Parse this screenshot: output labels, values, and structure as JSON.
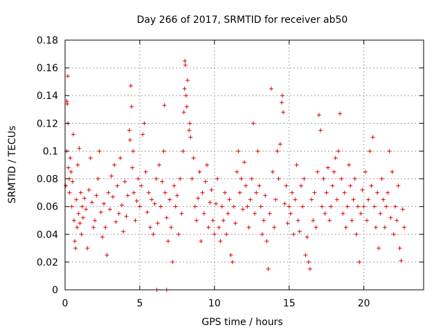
{
  "chart_data": {
    "type": "scatter",
    "title": "Day 266 of 2017, SRMTID for receiver ab50",
    "xlabel": "GPS time / hours",
    "ylabel": "SRMTID / TECUs",
    "xlim": [
      0,
      24
    ],
    "ylim": [
      0,
      0.18
    ],
    "x_ticks": [
      0,
      5,
      10,
      15,
      20
    ],
    "x_tick_labels": [
      "0",
      "5",
      "10",
      "15",
      "20"
    ],
    "y_ticks": [
      0,
      0.02,
      0.04,
      0.06,
      0.08,
      0.1,
      0.12,
      0.14,
      0.16,
      0.18
    ],
    "y_tick_labels": [
      "0",
      "0.02",
      "0.04",
      "0.06",
      "0.08",
      "0.1",
      "0.12",
      "0.14",
      "0.16",
      "0.18"
    ],
    "grid": true,
    "marker": "+",
    "color": "#dd0000",
    "series": [
      {
        "name": "SRMTID",
        "points": [
          [
            0.05,
            0.075
          ],
          [
            0.1,
            0.1
          ],
          [
            0.12,
            0.136
          ],
          [
            0.15,
            0.134
          ],
          [
            0.18,
            0.154
          ],
          [
            0.2,
            0.12
          ],
          [
            0.22,
            0.088
          ],
          [
            0.28,
            0.08
          ],
          [
            0.3,
            0.07
          ],
          [
            0.35,
            0.095
          ],
          [
            0.4,
            0.085
          ],
          [
            0.45,
            0.06
          ],
          [
            0.5,
            0.078
          ],
          [
            0.55,
            0.112
          ],
          [
            0.6,
            0.05
          ],
          [
            0.65,
            0.035
          ],
          [
            0.7,
            0.03
          ],
          [
            0.75,
            0.065
          ],
          [
            0.8,
            0.045
          ],
          [
            0.85,
            0.09
          ],
          [
            0.9,
            0.055
          ],
          [
            0.95,
            0.102
          ],
          [
            1.0,
            0.048
          ],
          [
            1.05,
            0.07
          ],
          [
            1.1,
            0.04
          ],
          [
            1.15,
            0.06
          ],
          [
            1.2,
            0.052
          ],
          [
            1.3,
            0.066
          ],
          [
            1.4,
            0.058
          ],
          [
            1.5,
            0.03
          ],
          [
            1.6,
            0.072
          ],
          [
            1.7,
            0.095
          ],
          [
            1.8,
            0.063
          ],
          [
            1.9,
            0.045
          ],
          [
            2.0,
            0.05
          ],
          [
            2.1,
            0.068
          ],
          [
            2.2,
            0.08
          ],
          [
            2.3,
            0.1
          ],
          [
            2.4,
            0.056
          ],
          [
            2.5,
            0.038
          ],
          [
            2.6,
            0.062
          ],
          [
            2.7,
            0.045
          ],
          [
            2.8,
            0.025
          ],
          [
            2.9,
            0.07
          ],
          [
            3.0,
            0.058
          ],
          [
            3.1,
            0.082
          ],
          [
            3.2,
            0.067
          ],
          [
            3.3,
            0.09
          ],
          [
            3.4,
            0.049
          ],
          [
            3.5,
            0.075
          ],
          [
            3.6,
            0.055
          ],
          [
            3.7,
            0.095
          ],
          [
            3.8,
            0.061
          ],
          [
            3.9,
            0.042
          ],
          [
            4.0,
            0.078
          ],
          [
            4.1,
            0.053
          ],
          [
            4.2,
            0.068
          ],
          [
            4.3,
            0.115
          ],
          [
            4.35,
            0.108
          ],
          [
            4.4,
            0.147
          ],
          [
            4.45,
            0.132
          ],
          [
            4.5,
            0.088
          ],
          [
            4.55,
            0.1
          ],
          [
            4.6,
            0.07
          ],
          [
            4.7,
            0.05
          ],
          [
            4.8,
            0.064
          ],
          [
            4.9,
            0.08
          ],
          [
            5.0,
            0.06
          ],
          [
            5.1,
            0.075
          ],
          [
            5.2,
            0.112
          ],
          [
            5.3,
            0.12
          ],
          [
            5.4,
            0.085
          ],
          [
            5.5,
            0.056
          ],
          [
            5.6,
            0.07
          ],
          [
            5.7,
            0.045
          ],
          [
            5.8,
            0.065
          ],
          [
            5.9,
            0.04
          ],
          [
            6.0,
            0.062
          ],
          [
            6.1,
            0.08
          ],
          [
            6.2,
            0.048
          ],
          [
            6.3,
            0.09
          ],
          [
            6.4,
            0.06
          ],
          [
            6.5,
            0.078
          ],
          [
            6.6,
            0.1
          ],
          [
            6.65,
            0.133
          ],
          [
            6.7,
            0.07
          ],
          [
            6.8,
            0.052
          ],
          [
            6.9,
            0.035
          ],
          [
            7.0,
            0.065
          ],
          [
            7.1,
            0.045
          ],
          [
            7.2,
            0.02
          ],
          [
            7.3,
            0.075
          ],
          [
            7.4,
            0.06
          ],
          [
            7.5,
            0.068
          ],
          [
            7.6,
            0.04
          ],
          [
            7.7,
            0.08
          ],
          [
            7.8,
            0.055
          ],
          [
            7.9,
            0.1
          ],
          [
            7.95,
            0.128
          ],
          [
            8.0,
            0.145
          ],
          [
            8.02,
            0.165
          ],
          [
            8.05,
            0.162
          ],
          [
            8.1,
            0.14
          ],
          [
            8.15,
            0.132
          ],
          [
            8.2,
            0.151
          ],
          [
            8.3,
            0.115
          ],
          [
            8.35,
            0.12
          ],
          [
            8.4,
            0.11
          ],
          [
            8.5,
            0.08
          ],
          [
            8.6,
            0.095
          ],
          [
            8.7,
            0.06
          ],
          [
            8.8,
            0.05
          ],
          [
            8.9,
            0.066
          ],
          [
            9.0,
            0.085
          ],
          [
            9.1,
            0.035
          ],
          [
            9.2,
            0.07
          ],
          [
            9.3,
            0.055
          ],
          [
            9.4,
            0.078
          ],
          [
            9.5,
            0.09
          ],
          [
            9.6,
            0.045
          ],
          [
            9.7,
            0.063
          ],
          [
            9.8,
            0.072
          ],
          [
            9.9,
            0.05
          ],
          [
            10.0,
            0.04
          ],
          [
            10.1,
            0.062
          ],
          [
            10.2,
            0.08
          ],
          [
            10.3,
            0.045
          ],
          [
            10.4,
            0.035
          ],
          [
            10.5,
            0.06
          ],
          [
            10.6,
            0.05
          ],
          [
            10.7,
            0.07
          ],
          [
            10.8,
            0.04
          ],
          [
            10.9,
            0.055
          ],
          [
            11.0,
            0.065
          ],
          [
            11.1,
            0.025
          ],
          [
            11.2,
            0.02
          ],
          [
            11.3,
            0.06
          ],
          [
            11.4,
            0.048
          ],
          [
            11.5,
            0.085
          ],
          [
            11.6,
            0.1
          ],
          [
            11.7,
            0.07
          ],
          [
            11.8,
            0.08
          ],
          [
            11.9,
            0.058
          ],
          [
            12.0,
            0.092
          ],
          [
            12.1,
            0.075
          ],
          [
            12.2,
            0.06
          ],
          [
            12.3,
            0.045
          ],
          [
            12.4,
            0.065
          ],
          [
            12.5,
            0.08
          ],
          [
            12.6,
            0.12
          ],
          [
            12.7,
            0.055
          ],
          [
            12.8,
            0.07
          ],
          [
            12.9,
            0.1
          ],
          [
            13.0,
            0.075
          ],
          [
            13.1,
            0.06
          ],
          [
            13.2,
            0.04
          ],
          [
            13.3,
            0.05
          ],
          [
            13.4,
            0.068
          ],
          [
            13.5,
            0.035
          ],
          [
            13.6,
            0.015
          ],
          [
            13.7,
            0.055
          ],
          [
            13.8,
            0.145
          ],
          [
            13.9,
            0.085
          ],
          [
            14.0,
            0.045
          ],
          [
            14.1,
            0.065
          ],
          [
            14.2,
            0.1
          ],
          [
            14.3,
            0.08
          ],
          [
            14.4,
            0.105
          ],
          [
            14.5,
            0.135
          ],
          [
            14.55,
            0.14
          ],
          [
            14.6,
            0.128
          ],
          [
            14.7,
            0.062
          ],
          [
            14.8,
            0.075
          ],
          [
            14.9,
            0.048
          ],
          [
            15.0,
            0.06
          ],
          [
            15.1,
            0.055
          ],
          [
            15.2,
            0.07
          ],
          [
            15.3,
            0.04
          ],
          [
            15.4,
            0.065
          ],
          [
            15.5,
            0.09
          ],
          [
            15.6,
            0.05
          ],
          [
            15.7,
            0.042
          ],
          [
            15.8,
            0.075
          ],
          [
            15.9,
            0.06
          ],
          [
            16.0,
            0.08
          ],
          [
            16.1,
            0.025
          ],
          [
            16.2,
            0.038
          ],
          [
            16.3,
            0.02
          ],
          [
            16.4,
            0.015
          ],
          [
            16.5,
            0.065
          ],
          [
            16.6,
            0.05
          ],
          [
            16.7,
            0.07
          ],
          [
            16.8,
            0.045
          ],
          [
            16.9,
            0.085
          ],
          [
            17.0,
            0.126
          ],
          [
            17.1,
            0.115
          ],
          [
            17.2,
            0.06
          ],
          [
            17.3,
            0.08
          ],
          [
            17.4,
            0.055
          ],
          [
            17.5,
            0.07
          ],
          [
            17.6,
            0.088
          ],
          [
            17.7,
            0.05
          ],
          [
            17.8,
            0.06
          ],
          [
            17.9,
            0.075
          ],
          [
            18.0,
            0.085
          ],
          [
            18.1,
            0.095
          ],
          [
            18.2,
            0.065
          ],
          [
            18.3,
            0.1
          ],
          [
            18.4,
            0.127
          ],
          [
            18.5,
            0.08
          ],
          [
            18.6,
            0.055
          ],
          [
            18.7,
            0.07
          ],
          [
            18.8,
            0.045
          ],
          [
            18.9,
            0.06
          ],
          [
            19.0,
            0.09
          ],
          [
            19.1,
            0.075
          ],
          [
            19.2,
            0.05
          ],
          [
            19.3,
            0.065
          ],
          [
            19.4,
            0.08
          ],
          [
            19.5,
            0.04
          ],
          [
            19.6,
            0.06
          ],
          [
            19.7,
            0.02
          ],
          [
            19.8,
            0.055
          ],
          [
            19.9,
            0.072
          ],
          [
            20.0,
            0.06
          ],
          [
            20.1,
            0.085
          ],
          [
            20.2,
            0.05
          ],
          [
            20.3,
            0.065
          ],
          [
            20.4,
            0.1
          ],
          [
            20.5,
            0.075
          ],
          [
            20.6,
            0.11
          ],
          [
            20.7,
            0.06
          ],
          [
            20.8,
            0.045
          ],
          [
            20.9,
            0.07
          ],
          [
            21.0,
            0.03
          ],
          [
            21.1,
            0.055
          ],
          [
            21.2,
            0.08
          ],
          [
            21.3,
            0.065
          ],
          [
            21.4,
            0.045
          ],
          [
            21.5,
            0.06
          ],
          [
            21.6,
            0.07
          ],
          [
            21.7,
            0.1
          ],
          [
            21.8,
            0.052
          ],
          [
            21.9,
            0.085
          ],
          [
            22.0,
            0.04
          ],
          [
            22.1,
            0.06
          ],
          [
            22.2,
            0.05
          ],
          [
            22.3,
            0.075
          ],
          [
            22.4,
            0.03
          ],
          [
            22.5,
            0.021
          ],
          [
            22.6,
            0.058
          ],
          [
            22.7,
            0.045
          ],
          [
            6.15,
            0.0
          ],
          [
            6.8,
            0.0
          ]
        ]
      }
    ]
  }
}
